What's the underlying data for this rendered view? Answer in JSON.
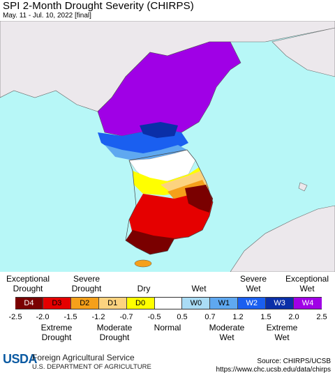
{
  "header": {
    "title": "SPI 2-Month Drought Severity (CHIRPS)",
    "subtitle": "May. 11 - Jul. 10, 2022 [final]"
  },
  "legend": {
    "top_labels": [
      {
        "text": "Exceptional\nDrought"
      },
      {
        "text": "Severe\nDrought"
      },
      {
        "text": "Dry"
      },
      {
        "text": "Wet"
      },
      {
        "text": "Severe\nWet"
      },
      {
        "text": "Exceptional\nWet"
      }
    ],
    "categories": [
      {
        "code": "D4",
        "color": "#7a0000",
        "text_color": "#ffffff"
      },
      {
        "code": "D3",
        "color": "#e50000",
        "text_color": "#000000"
      },
      {
        "code": "D2",
        "color": "#f5a01a",
        "text_color": "#000000"
      },
      {
        "code": "D1",
        "color": "#fcd37f",
        "text_color": "#000000"
      },
      {
        "code": "D0",
        "color": "#ffff00",
        "text_color": "#000000"
      },
      {
        "code": "",
        "color": "#ffffff",
        "text_color": "#000000"
      },
      {
        "code": "W0",
        "color": "#aadcf5",
        "text_color": "#000000"
      },
      {
        "code": "W1",
        "color": "#5fa8f0",
        "text_color": "#000000"
      },
      {
        "code": "W2",
        "color": "#1a5ff0",
        "text_color": "#ffffff"
      },
      {
        "code": "W3",
        "color": "#0a2fa8",
        "text_color": "#ffffff"
      },
      {
        "code": "W4",
        "color": "#a000e6",
        "text_color": "#ffffff"
      }
    ],
    "ticks": [
      "-2.5",
      "-2.0",
      "-1.5",
      "-1.2",
      "-0.7",
      "-0.5",
      "0.5",
      "0.7",
      "1.2",
      "1.5",
      "2.0",
      "2.5"
    ],
    "bottom_labels": [
      {
        "text": "Extreme\nDrought"
      },
      {
        "text": "Moderate\nDrought"
      },
      {
        "text": "Normal"
      },
      {
        "text": "Moderate\nWet"
      },
      {
        "text": "Extreme\nWet"
      }
    ]
  },
  "footer": {
    "agency_logo": "USDA",
    "agency_name": "Foreign Agricultural Service",
    "department": "U.S. DEPARTMENT OF AGRICULTURE",
    "source": "Source: CHIRPS/UCSB",
    "url": "https://www.chc.ucsb.edu/data/chirps"
  },
  "colors": {
    "ocean": "#b7f7f7",
    "land_outside": "#ece8ec",
    "border": "#555555"
  }
}
